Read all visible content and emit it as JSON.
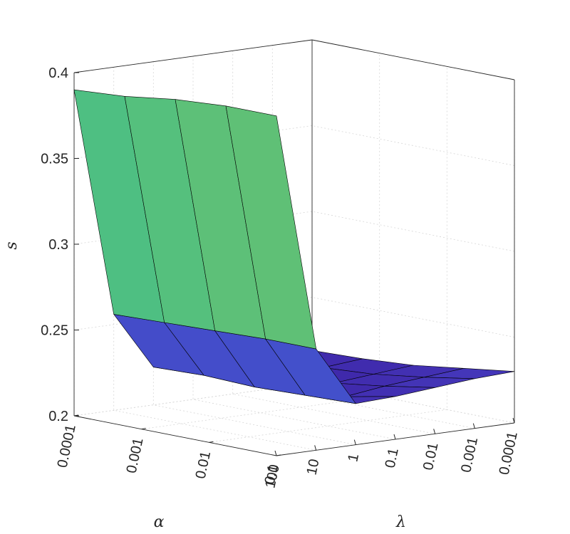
{
  "chart_data": {
    "type": "surface",
    "title": "",
    "xlabel": "α",
    "ylabel": "λ",
    "zlabel": "s",
    "alpha_ticks": [
      "0.0001",
      "0.001",
      "0.01",
      "0.1"
    ],
    "lambda_ticks": [
      "100",
      "10",
      "1",
      "0.1",
      "0.01",
      "0.001",
      "0.0001"
    ],
    "z_ticks": [
      "0.2",
      "0.25",
      "0.3",
      "0.35",
      "0.4"
    ],
    "zlim": [
      0.2,
      0.4
    ],
    "grid": true,
    "colormap": "parula",
    "alpha": [
      "0.0001",
      "0.0003",
      "0.001",
      "0.003",
      "0.01"
    ],
    "lambda": [
      "100",
      "10",
      "1",
      "0.1",
      "0.01",
      "0.001",
      "0.0001"
    ],
    "z": [
      [
        0.39,
        0.392,
        0.396,
        0.398,
        0.398
      ],
      [
        0.256,
        0.257,
        0.258,
        0.259,
        0.259
      ],
      [
        0.222,
        0.223,
        0.222,
        0.223,
        0.224
      ],
      [
        0.221,
        0.218,
        0.216,
        0.219,
        0.225
      ],
      [
        0.221,
        0.217,
        0.218,
        0.222,
        0.227
      ],
      [
        0.22,
        0.218,
        0.22,
        0.224,
        0.229
      ],
      [
        0.219,
        0.22,
        0.222,
        0.226,
        0.23
      ]
    ]
  }
}
